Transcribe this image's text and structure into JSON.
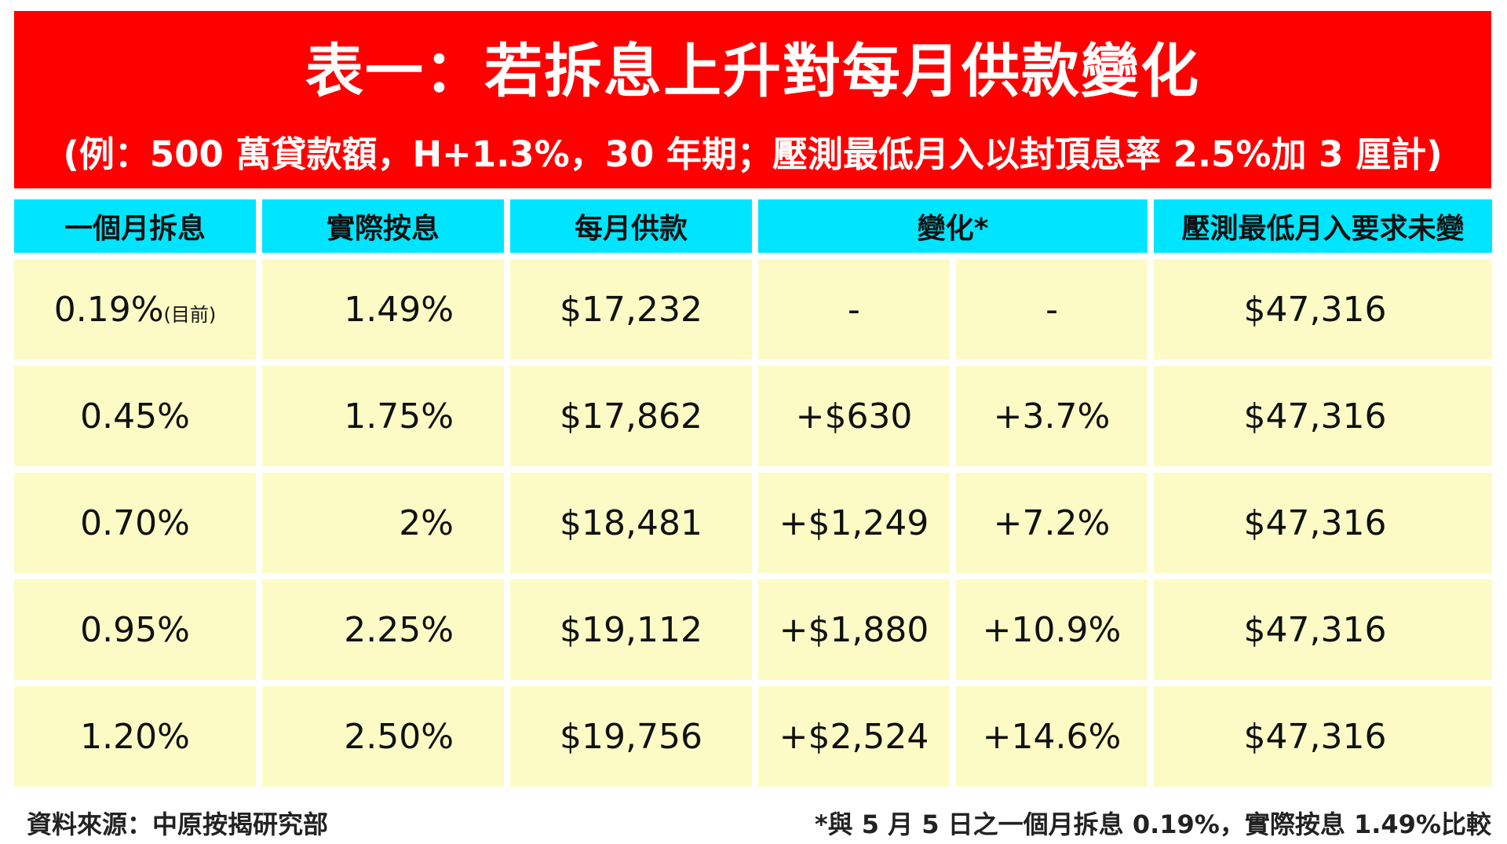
{
  "header": {
    "title": "表一：若拆息上升對每月供款變化",
    "subtitle": "(例：500 萬貸款額，H+1.3%，30 年期；壓測最低月入以封頂息率 2.5%加 3 厘計)"
  },
  "table": {
    "headers": [
      "一個月拆息",
      "實際按息",
      "每月供款",
      "變化*",
      "壓測最低月入要求未變"
    ],
    "rows": [
      {
        "hibor": "0.19%",
        "hibor_note": "(目前)",
        "rate": "1.49%",
        "payment": "$17,232",
        "change_amount": "-",
        "change_pct": "-",
        "min_income": "$47,316"
      },
      {
        "hibor": "0.45%",
        "hibor_note": "",
        "rate": "1.75%",
        "payment": "$17,862",
        "change_amount": "+$630",
        "change_pct": "+3.7%",
        "min_income": "$47,316"
      },
      {
        "hibor": "0.70%",
        "hibor_note": "",
        "rate": "2%",
        "payment": "$18,481",
        "change_amount": "+$1,249",
        "change_pct": "+7.2%",
        "min_income": "$47,316"
      },
      {
        "hibor": "0.95%",
        "hibor_note": "",
        "rate": "2.25%",
        "payment": "$19,112",
        "change_amount": "+$1,880",
        "change_pct": "+10.9%",
        "min_income": "$47,316"
      },
      {
        "hibor": "1.20%",
        "hibor_note": "",
        "rate": "2.50%",
        "payment": "$19,756",
        "change_amount": "+$2,524",
        "change_pct": "+14.6%",
        "min_income": "$47,316"
      }
    ]
  },
  "footer": {
    "source": "資料來源：中原按揭研究部",
    "note": "*與 5 月 5 日之一個月拆息 0.19%，實際按息 1.49%比較"
  },
  "colors": {
    "header_bg": "#ff0000",
    "column_header_bg": "#00e5ff",
    "cell_bg": "#fcfbc5"
  }
}
